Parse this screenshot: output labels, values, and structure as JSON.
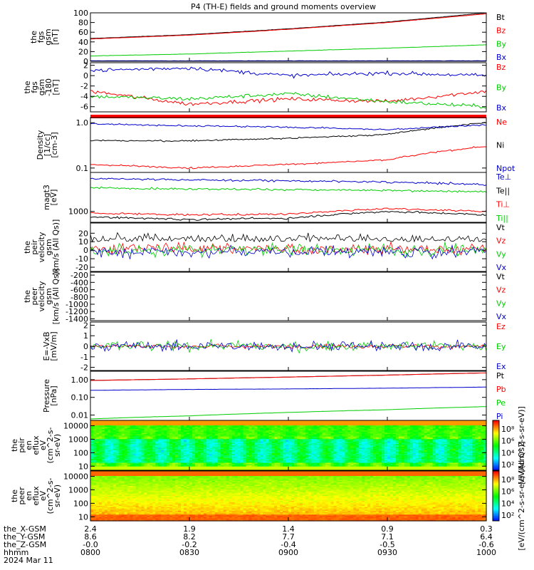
{
  "title": "P4 (TH-E) fields and ground moments overview",
  "colors": {
    "black": "#000000",
    "red": "#ff0000",
    "green": "#00cc00",
    "blue": "#0000cc"
  },
  "chart_data": [
    {
      "type": "line",
      "id": "fgs-gsm-mag",
      "ylabel_lines": [
        "the",
        "fgs",
        "gsm",
        "[nT]"
      ],
      "ylim": [
        0,
        100
      ],
      "yticks": [
        "100",
        "80",
        "60",
        "40",
        "20",
        "0"
      ],
      "legend": [
        "Bt",
        "Bz",
        "By",
        "Bx"
      ],
      "x": [
        "0800",
        "0830",
        "0900",
        "0930",
        "1000"
      ],
      "series": [
        {
          "name": "Bt",
          "color": "black",
          "values": [
            47,
            55,
            67,
            81,
            100
          ]
        },
        {
          "name": "Bz",
          "color": "red",
          "values": [
            46,
            54,
            66,
            80,
            98
          ]
        },
        {
          "name": "By",
          "color": "green",
          "values": [
            11,
            15,
            21,
            27,
            34
          ]
        },
        {
          "name": "Bx",
          "color": "blue",
          "values": [
            1,
            1,
            1,
            1,
            1
          ]
        }
      ]
    },
    {
      "type": "line",
      "id": "fgs-gsm-zoom",
      "ylabel_lines": [
        "the",
        "fgs",
        "gsm",
        "-180",
        "[nT]"
      ],
      "ylim": [
        -7,
        2.5
      ],
      "yticks": [
        "2",
        "0",
        "-2",
        "-4",
        "-6"
      ],
      "legend": [
        "Bz",
        "By",
        "Bx"
      ],
      "x": [
        "0800",
        "0830",
        "0900",
        "0930",
        "1000"
      ],
      "series": [
        {
          "name": "Bz",
          "color": "red",
          "values": [
            -3,
            -5.5,
            -4.5,
            -5,
            -3
          ]
        },
        {
          "name": "By",
          "color": "green",
          "values": [
            -4,
            -4.5,
            -3.5,
            -5,
            -6
          ]
        },
        {
          "name": "Bx",
          "color": "blue",
          "values": [
            1,
            1.5,
            0,
            0.5,
            0
          ]
        }
      ]
    },
    {
      "type": "line",
      "id": "density",
      "ylabel_lines": [
        "Density",
        "[1/cc]",
        "[cm-3]"
      ],
      "ylim": [
        0.08,
        1.3
      ],
      "log": true,
      "yticks": [
        "1.0",
        "0.1"
      ],
      "legend": [
        "Ne",
        "Ni",
        "Npot"
      ],
      "x": [
        "0800",
        "0830",
        "0900",
        "0930",
        "1000"
      ],
      "series": [
        {
          "name": "Ne",
          "color": "red",
          "values": [
            0.12,
            0.1,
            0.12,
            0.15,
            0.3
          ]
        },
        {
          "name": "Ni",
          "color": "black",
          "values": [
            0.4,
            0.4,
            0.45,
            0.55,
            1.0
          ]
        },
        {
          "name": "Npot",
          "color": "blue",
          "values": [
            0.95,
            0.85,
            0.8,
            0.7,
            0.9
          ]
        }
      ]
    },
    {
      "type": "line",
      "id": "temperature",
      "ylabel_lines": [
        "magt3",
        "[eV]"
      ],
      "ylim": [
        500,
        12000
      ],
      "log": true,
      "yticks": [
        "1000"
      ],
      "legend": [
        "Te⊥",
        "Te||",
        "Ti⊥",
        "Ti||"
      ],
      "x": [
        "0800",
        "0830",
        "0900",
        "0930",
        "1000"
      ],
      "series": [
        {
          "name": "Te⊥",
          "color": "blue",
          "values": [
            8000,
            7500,
            7000,
            6500,
            5500
          ]
        },
        {
          "name": "Te||",
          "color": "black",
          "values": [
            700,
            600,
            650,
            1000,
            800
          ]
        },
        {
          "name": "Ti⊥",
          "color": "red",
          "values": [
            900,
            800,
            850,
            1200,
            1000
          ]
        },
        {
          "name": "Ti||",
          "color": "green",
          "values": [
            4500,
            4200,
            4000,
            3800,
            3500
          ]
        }
      ]
    },
    {
      "type": "line",
      "id": "peir-velocity",
      "ylabel_lines": [
        "the",
        "peir",
        "velocity",
        "gsm",
        "[km/s (All Qs)]"
      ],
      "ylim": [
        -25,
        32
      ],
      "yticks": [
        "20",
        "10",
        "0",
        "-10",
        "-20"
      ],
      "legend": [
        "Vt",
        "Vz",
        "Vy",
        "Vx"
      ],
      "x": [
        "0800",
        "0830",
        "0900",
        "0930",
        "1000"
      ],
      "series": [
        {
          "name": "Vt",
          "color": "black",
          "values": [
            10,
            10,
            10,
            10,
            10
          ]
        },
        {
          "name": "Vz",
          "color": "red",
          "values": [
            2,
            2,
            2,
            2,
            2
          ]
        },
        {
          "name": "Vy",
          "color": "green",
          "values": [
            0,
            0,
            0,
            0,
            0
          ]
        },
        {
          "name": "Vx",
          "color": "blue",
          "values": [
            -2,
            -2,
            -2,
            -2,
            -2
          ]
        }
      ]
    },
    {
      "type": "line",
      "id": "peer-velocity",
      "ylabel_lines": [
        "the",
        "peer",
        "velocity",
        "gsm",
        "[km/s (All Qs)]"
      ],
      "ylim": [
        -1450,
        -120
      ],
      "yticks": [
        "-200",
        "-400",
        "-600",
        "-800",
        "-1000",
        "-1200",
        "-1400"
      ],
      "legend": [
        "Vt",
        "Vz",
        "Vy",
        "Vx"
      ],
      "x": [
        "0800",
        "0830",
        "0900",
        "0930",
        "1000"
      ],
      "series": []
    },
    {
      "type": "line",
      "id": "e-field",
      "ylabel_lines": [
        "E=-VxB",
        "[mV/m]"
      ],
      "ylim": [
        -2.3,
        2.3
      ],
      "yticks": [
        "2",
        "1",
        "0",
        "-1",
        "-2"
      ],
      "legend": [
        "Ez",
        "Ey",
        "Ex"
      ],
      "x": [
        "0800",
        "0830",
        "0900",
        "0930",
        "1000"
      ],
      "series": [
        {
          "name": "Ez",
          "color": "red",
          "values": [
            0,
            0,
            0,
            0,
            0
          ]
        },
        {
          "name": "Ey",
          "color": "green",
          "values": [
            0,
            0,
            0,
            0,
            0
          ]
        },
        {
          "name": "Ex",
          "color": "blue",
          "values": [
            0,
            0,
            0,
            0,
            0
          ]
        }
      ]
    },
    {
      "type": "line",
      "id": "pressure",
      "ylabel_lines": [
        "Pressure",
        "[nPa]"
      ],
      "ylim": [
        0.005,
        3
      ],
      "log": true,
      "yticks": [
        "1.00",
        "0.10",
        "0.01"
      ],
      "legend": [
        "Pt",
        "Pb",
        "Pe",
        "Pi"
      ],
      "x": [
        "0800",
        "0830",
        "0900",
        "0930",
        "1000"
      ],
      "series": [
        {
          "name": "Pt",
          "color": "black",
          "values": [
            0.9,
            1.1,
            1.4,
            1.8,
            2.4
          ]
        },
        {
          "name": "Pb",
          "color": "red",
          "values": [
            0.9,
            1.1,
            1.4,
            1.8,
            2.4
          ]
        },
        {
          "name": "Pe",
          "color": "green",
          "values": [
            0.006,
            0.009,
            0.014,
            0.02,
            0.03
          ]
        },
        {
          "name": "Pi",
          "color": "blue",
          "values": [
            0.25,
            0.28,
            0.3,
            0.33,
            0.38
          ]
        }
      ]
    },
    {
      "type": "heatmap",
      "id": "peir-spectrogram",
      "ylabel_lines": [
        "the",
        "peir",
        "en",
        "eflux",
        "eV",
        "(cm^2-s-",
        "sr-eV)"
      ],
      "ylim": [
        5,
        25000
      ],
      "log": true,
      "yticks": [
        "10000",
        "1000",
        "100",
        "10"
      ],
      "colorbar_label": "[eV/(cm^2-s-sr-eV)]",
      "colorbar_ticks": [
        "10⁸",
        "10⁶",
        "10⁴",
        "10²"
      ]
    },
    {
      "type": "heatmap",
      "id": "peer-spectrogram",
      "ylabel_lines": [
        "the",
        "peer",
        "en",
        "eflux",
        "eV",
        "(cm^2-s-",
        "sr-eV)"
      ],
      "ylim": [
        5,
        25000
      ],
      "log": true,
      "yticks": [
        "10000",
        "1000",
        "100",
        "10"
      ],
      "colorbar_label": "[eV/(cm^2-s-sr-eV) (All Qs)]",
      "colorbar_ticks": [
        "10⁸",
        "10⁶",
        "10⁴",
        "10²"
      ]
    }
  ],
  "x_axis": {
    "rows": [
      {
        "label": "the_X-GSM",
        "values": [
          "2.4",
          "1.9",
          "1.4",
          "0.9",
          "0.3"
        ]
      },
      {
        "label": "the_Y-GSM",
        "values": [
          "8.6",
          "8.2",
          "7.7",
          "7.1",
          "6.4"
        ]
      },
      {
        "label": "the_Z-GSM",
        "values": [
          "-0.0",
          "-0.2",
          "-0.4",
          "-0.5",
          "-0.6"
        ]
      },
      {
        "label": "hhmm",
        "values": [
          "0800",
          "0830",
          "0900",
          "0930",
          "1000"
        ]
      }
    ],
    "date": "2024 Mar 11"
  }
}
